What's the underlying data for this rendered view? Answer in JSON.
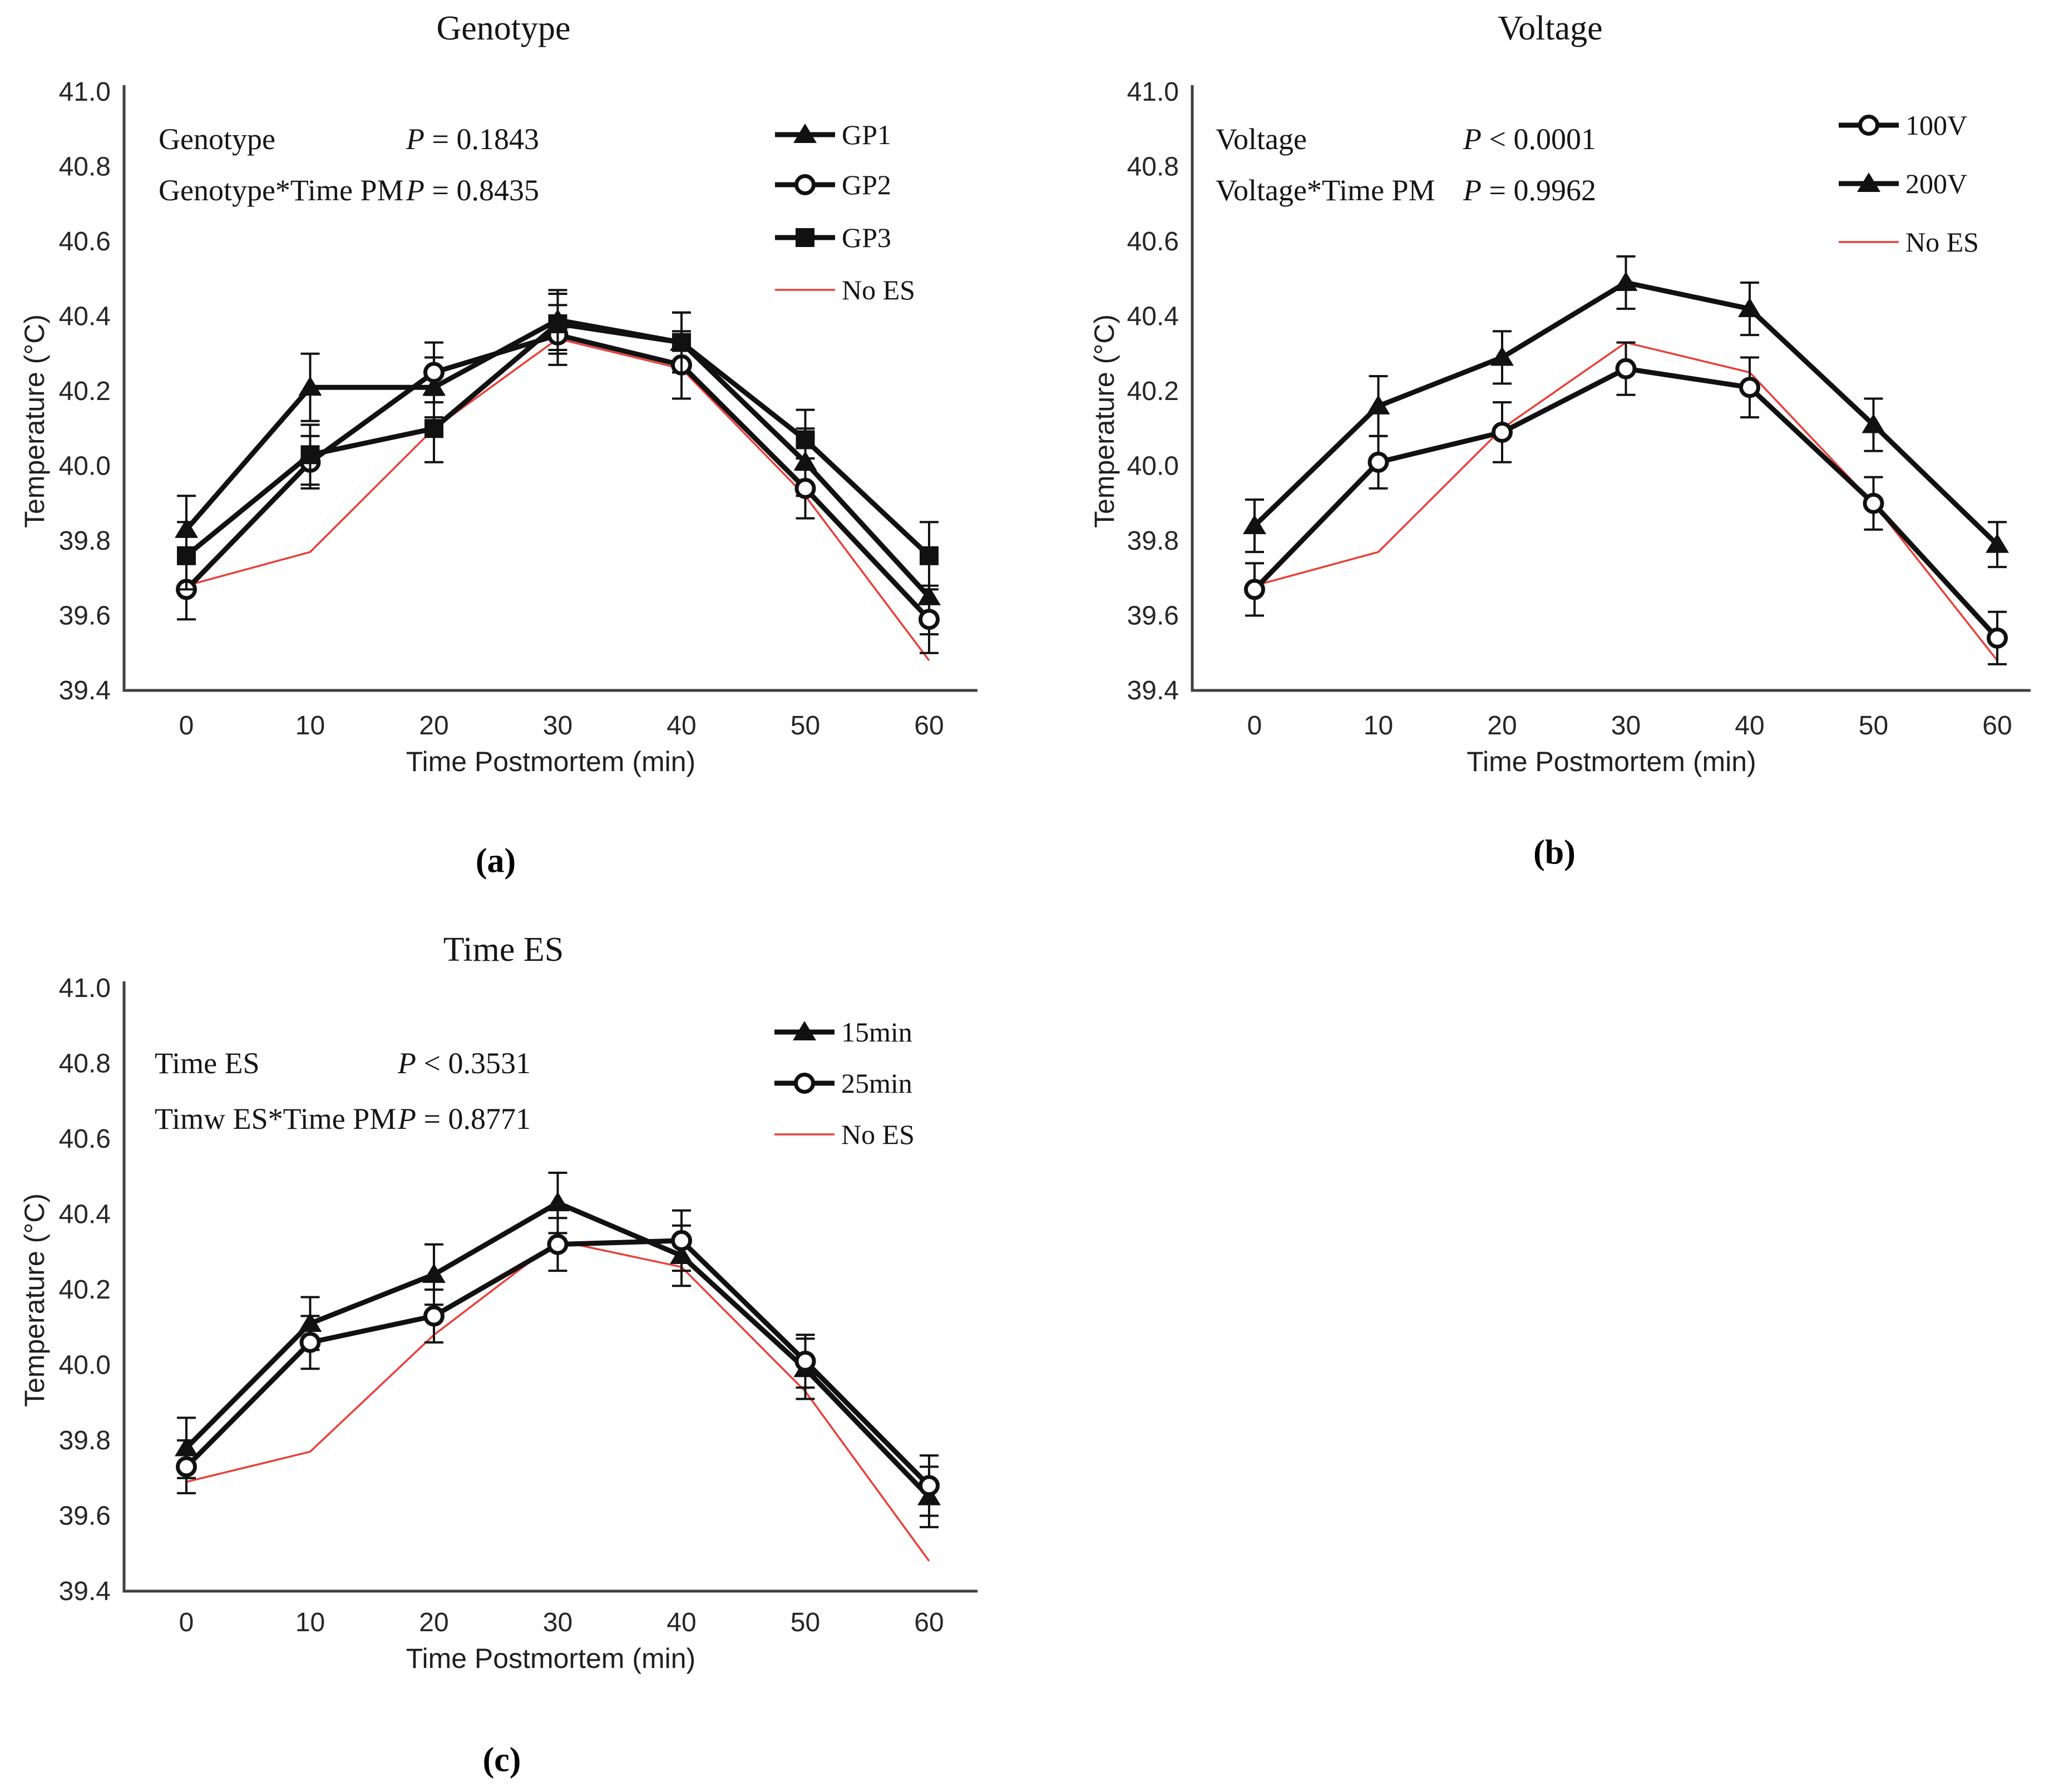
{
  "figure": {
    "background": "#ffffff"
  },
  "colors": {
    "series_black": "#111111",
    "no_es_red": "#e8403a",
    "axis_gray": "#404040"
  },
  "axis": {
    "x_label": "Time Postmortem (min)",
    "y_label": "Temperature (°C)",
    "x_ticks": [
      0,
      10,
      20,
      30,
      40,
      50,
      60
    ],
    "y_ticks": [
      "41.0",
      "40.8",
      "40.6",
      "40.4",
      "40.2",
      "40.0",
      "39.8",
      "39.6",
      "39.4"
    ],
    "ylim": [
      39.4,
      41.0
    ]
  },
  "captions": [
    "(a)",
    "(b)",
    "(c)"
  ],
  "chart_data": [
    {
      "type": "line",
      "panel": "a",
      "title": "Genotype",
      "xlabel": "Time Postmortem (min)",
      "ylabel": "Temperature (°C)",
      "ylim": [
        39.4,
        41.0
      ],
      "x": [
        0,
        10,
        20,
        30,
        40,
        50,
        60
      ],
      "stats": [
        {
          "factor": "Genotype",
          "p": "P = 0.1843"
        },
        {
          "factor": "Genotype*Time PM",
          "p": "P = 0.8435"
        }
      ],
      "series": [
        {
          "name": "GP1",
          "marker": "triangle-filled",
          "color": "#111111",
          "values": [
            39.83,
            40.21,
            40.21,
            40.39,
            40.33,
            40.01,
            39.65
          ],
          "errors": [
            0.09,
            0.09,
            0.08,
            0.08,
            0.08,
            0.09,
            0.1
          ]
        },
        {
          "name": "GP2",
          "marker": "circle-open",
          "color": "#111111",
          "values": [
            39.67,
            40.01,
            40.25,
            40.35,
            40.27,
            39.94,
            39.59
          ],
          "errors": [
            0.08,
            0.07,
            0.08,
            0.08,
            0.09,
            0.08,
            0.09
          ]
        },
        {
          "name": "GP3",
          "marker": "square-filled",
          "color": "#111111",
          "values": [
            39.76,
            40.03,
            40.1,
            40.38,
            40.33,
            40.07,
            39.76
          ],
          "errors": [
            0.09,
            0.08,
            0.09,
            0.08,
            0.08,
            0.08,
            0.09
          ]
        },
        {
          "name": "No ES",
          "marker": "none",
          "color": "#e8403a",
          "values": [
            39.68,
            39.77,
            40.1,
            40.34,
            40.26,
            39.92,
            39.48
          ],
          "errors": null
        }
      ]
    },
    {
      "type": "line",
      "panel": "b",
      "title": "Voltage",
      "xlabel": "Time Postmortem (min)",
      "ylabel": "Temperature (°C)",
      "ylim": [
        39.4,
        41.0
      ],
      "x": [
        0,
        10,
        20,
        30,
        40,
        50,
        60
      ],
      "stats": [
        {
          "factor": "Voltage",
          "p": "P < 0.0001"
        },
        {
          "factor": "Voltage*Time PM",
          "p": "P = 0.9962"
        }
      ],
      "series": [
        {
          "name": "100V",
          "marker": "circle-open",
          "color": "#111111",
          "values": [
            39.67,
            40.01,
            40.09,
            40.26,
            40.21,
            39.9,
            39.54
          ],
          "errors": [
            0.07,
            0.07,
            0.08,
            0.07,
            0.08,
            0.07,
            0.07
          ]
        },
        {
          "name": "200V",
          "marker": "triangle-filled",
          "color": "#111111",
          "values": [
            39.84,
            40.16,
            40.29,
            40.49,
            40.42,
            40.11,
            39.79
          ],
          "errors": [
            0.07,
            0.08,
            0.07,
            0.07,
            0.07,
            0.07,
            0.06
          ]
        },
        {
          "name": "No ES",
          "marker": "none",
          "color": "#e8403a",
          "values": [
            39.68,
            39.77,
            40.1,
            40.33,
            40.25,
            39.9,
            39.48
          ],
          "errors": null
        }
      ]
    },
    {
      "type": "line",
      "panel": "c",
      "title": "Time ES",
      "xlabel": "Time Postmortem (min)",
      "ylabel": "Temperature (°C)",
      "ylim": [
        39.4,
        41.0
      ],
      "x": [
        0,
        10,
        20,
        30,
        40,
        50,
        60
      ],
      "stats": [
        {
          "factor": "Time ES",
          "p": "P < 0.3531"
        },
        {
          "factor": "Timw ES*Time PM",
          "p": "P = 0.8771"
        }
      ],
      "series": [
        {
          "name": "15min",
          "marker": "triangle-filled",
          "color": "#111111",
          "values": [
            39.78,
            40.11,
            40.24,
            40.43,
            40.29,
            39.99,
            39.65
          ],
          "errors": [
            0.08,
            0.07,
            0.08,
            0.08,
            0.08,
            0.08,
            0.08
          ]
        },
        {
          "name": "25min",
          "marker": "circle-open",
          "color": "#111111",
          "values": [
            39.73,
            40.06,
            40.13,
            40.32,
            40.33,
            40.01,
            39.68
          ],
          "errors": [
            0.07,
            0.07,
            0.07,
            0.07,
            0.08,
            0.07,
            0.08
          ]
        },
        {
          "name": "No ES",
          "marker": "none",
          "color": "#e8403a",
          "values": [
            39.69,
            39.77,
            40.08,
            40.33,
            40.26,
            39.93,
            39.48
          ],
          "errors": null
        }
      ]
    }
  ]
}
